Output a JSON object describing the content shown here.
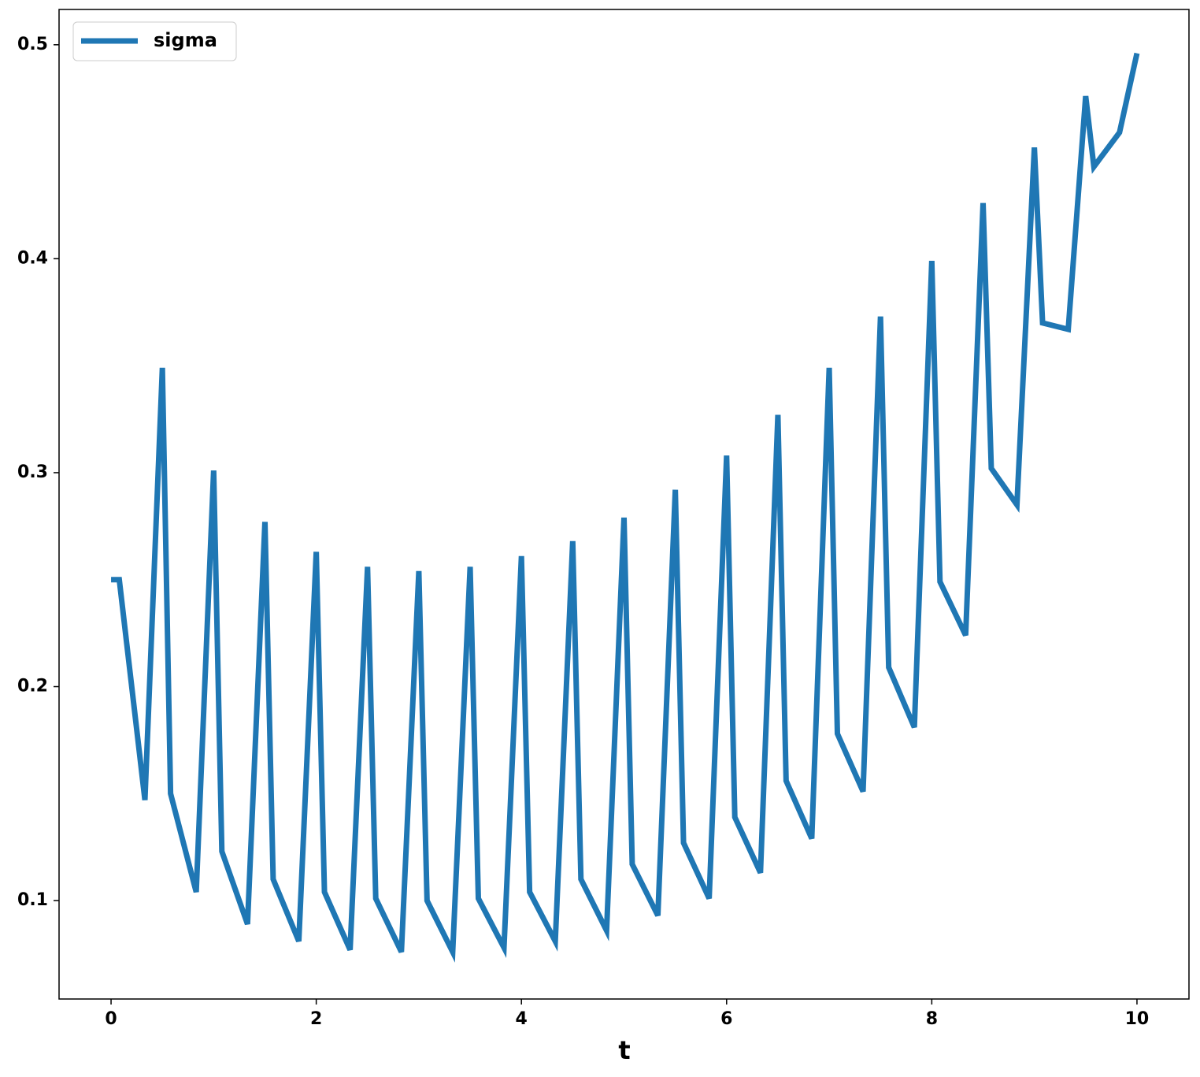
{
  "chart_data": {
    "type": "line",
    "x_label": "t",
    "x": [
      0,
      0.08,
      0.33,
      0.5,
      0.58,
      0.83,
      1,
      1.08,
      1.33,
      1.5,
      1.58,
      1.83,
      2,
      2.08,
      2.33,
      2.5,
      2.58,
      2.83,
      3,
      3.08,
      3.33,
      3.5,
      3.58,
      3.83,
      4,
      4.08,
      4.33,
      4.5,
      4.58,
      4.83,
      5,
      5.08,
      5.33,
      5.5,
      5.58,
      5.83,
      6,
      6.08,
      6.33,
      6.5,
      6.58,
      6.83,
      7,
      7.08,
      7.33,
      7.5,
      7.58,
      7.83,
      8,
      8.08,
      8.33,
      8.5,
      8.58,
      8.83,
      9,
      9.08,
      9.33,
      9.5,
      9.58,
      9.83,
      10
    ],
    "series": [
      {
        "name": "sigma",
        "color": "#1f77b4",
        "values": [
          0.25,
          0.25,
          0.147,
          0.349,
          0.15,
          0.104,
          0.301,
          0.123,
          0.089,
          0.277,
          0.11,
          0.081,
          0.263,
          0.104,
          0.077,
          0.256,
          0.101,
          0.076,
          0.254,
          0.1,
          0.076,
          0.256,
          0.101,
          0.078,
          0.261,
          0.104,
          0.081,
          0.268,
          0.11,
          0.086,
          0.279,
          0.117,
          0.093,
          0.292,
          0.127,
          0.101,
          0.308,
          0.139,
          0.113,
          0.327,
          0.156,
          0.129,
          0.349,
          0.178,
          0.151,
          0.373,
          0.209,
          0.181,
          0.399,
          0.249,
          0.224,
          0.426,
          0.302,
          0.285,
          0.452,
          0.37,
          0.367,
          0.476,
          0.443,
          0.459,
          0.496
        ]
      }
    ],
    "xlim": [
      -0.507,
      10.507
    ],
    "xticks": [
      0,
      2,
      4,
      6,
      8,
      10
    ],
    "ylim": [
      0.054,
      0.5165
    ],
    "yticks": [
      0.1,
      0.2,
      0.3,
      0.4,
      0.5
    ],
    "legend": "upper left",
    "grid": false
  }
}
